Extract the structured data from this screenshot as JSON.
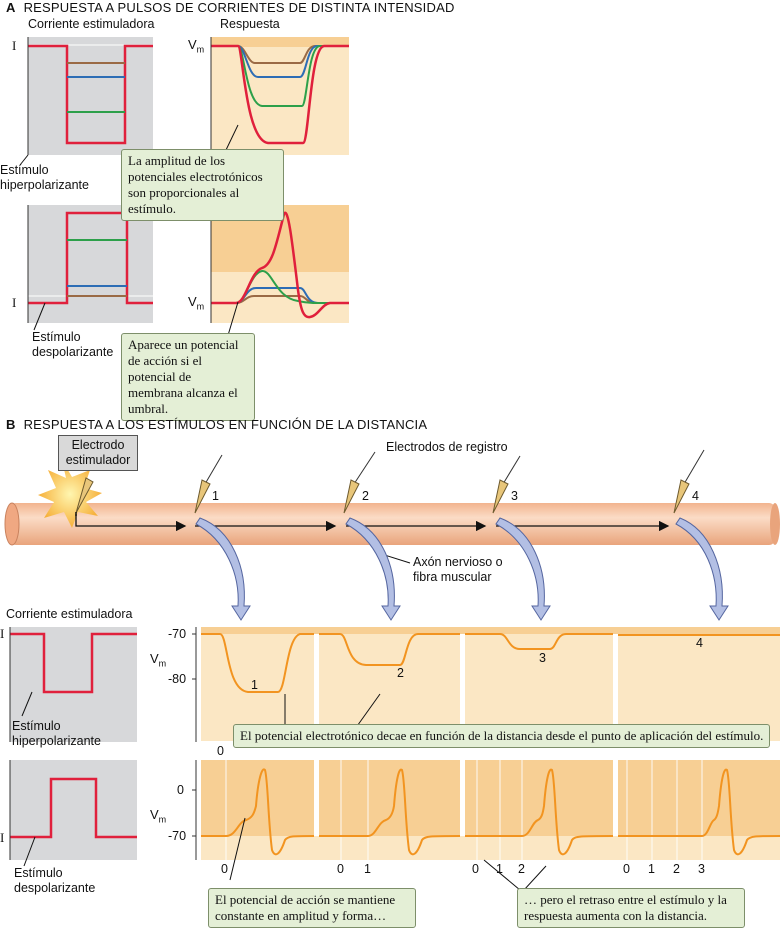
{
  "sectionA": {
    "letter": "A",
    "title": "RESPUESTA A PULSOS DE CORRIENTES DE DISTINTA INTENSIDAD",
    "stim_col_title": "Corriente estimuladora",
    "resp_col_title": "Respuesta",
    "I_label": "I",
    "vm_label": "V",
    "vm_sub": "m",
    "hyper_label": "Estímulo hiperpolarizante",
    "depol_label": "Estímulo despolarizante",
    "callout_hyper": "La amplitud de los potenciales electrotónicos son proporcionales al estímulo.",
    "callout_depol": "Aparece un potencial de acción si el potencial de membrana alcanza el umbral."
  },
  "sectionB": {
    "letter": "B",
    "title": "RESPUESTA A LOS ESTÍMULOS EN FUNCIÓN DE LA DISTANCIA",
    "stim_electrode": "Electrodo estimulador",
    "rec_electrodes": "Electrodos de registro",
    "electrode_nums": [
      "1",
      "2",
      "3",
      "4"
    ],
    "axon_label": "Axón nervioso o fibra muscular",
    "stim_col_title": "Corriente estimuladora",
    "I_label": "I",
    "vm_label": "V",
    "vm_sub": "m",
    "hyper_label": "Estímulo hiperpolarizante",
    "depol_label": "Estímulo despolarizante",
    "hyper_ticks": [
      "-70",
      "-80"
    ],
    "depol_ticks": [
      "0",
      "-70"
    ],
    "trace_nums": [
      "1",
      "2",
      "3",
      "4"
    ],
    "hyper_time_zero": "0",
    "depol_time_labels": [
      [
        "0"
      ],
      [
        "0",
        "1"
      ],
      [
        "0",
        "1",
        "2"
      ],
      [
        "0",
        "1",
        "2",
        "3"
      ]
    ],
    "callout_decay": "El potencial electrotónico decae en función de la distancia desde el punto de aplicación del estímulo.",
    "callout_constant": "El potencial de acción se mantiene constante en amplitud y forma…",
    "callout_delay": "… pero el retraso entre el estímulo y la respuesta aumenta con la distancia."
  },
  "colors": {
    "stim_trace": "#e0203c",
    "gray_bg": "#d7d8da",
    "resp_bg": "#fbe7c4",
    "resp_bg_dark": "#f7cf94",
    "orange_trace": "#f29420",
    "axon": "#f6c7a6",
    "brown": "#9a6a45",
    "blue": "#2d6db5",
    "green": "#2da04a",
    "arrow": "#b3bfe4"
  }
}
